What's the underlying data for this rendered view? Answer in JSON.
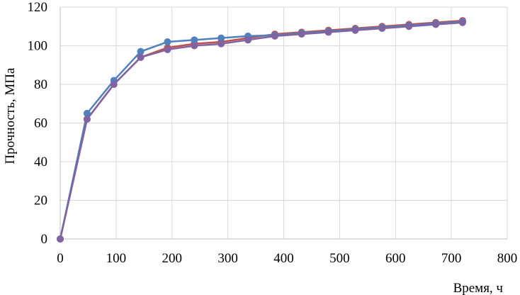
{
  "chart_data": {
    "type": "line",
    "xlabel": "Время, ч",
    "ylabel": "Прочность, МПа",
    "xlim": [
      0,
      800
    ],
    "ylim": [
      0,
      120
    ],
    "x_ticks": [
      0,
      100,
      200,
      300,
      400,
      500,
      600,
      700,
      800
    ],
    "y_ticks": [
      0,
      20,
      40,
      60,
      80,
      100,
      120
    ],
    "grid": "vertical and horizontal",
    "legend": "none",
    "x": [
      0,
      48,
      96,
      144,
      192,
      240,
      288,
      336,
      384,
      432,
      480,
      528,
      576,
      624,
      672,
      720
    ],
    "series": [
      {
        "color": "#c0504d",
        "values": [
          0,
          62,
          80,
          94,
          99,
          101,
          102,
          104,
          106,
          107,
          108,
          109,
          110,
          111,
          112,
          113
        ]
      },
      {
        "color": "#4f81bd",
        "values": [
          0,
          65,
          82,
          97,
          102,
          103,
          104,
          105,
          105.5,
          106.5,
          107.5,
          108.5,
          109.5,
          110.5,
          111.5,
          112.5
        ]
      },
      {
        "color": "#8064a2",
        "values": [
          0,
          62,
          80,
          94,
          98,
          100,
          101,
          103,
          105,
          106,
          107,
          108,
          109,
          110,
          111,
          112
        ]
      }
    ]
  }
}
